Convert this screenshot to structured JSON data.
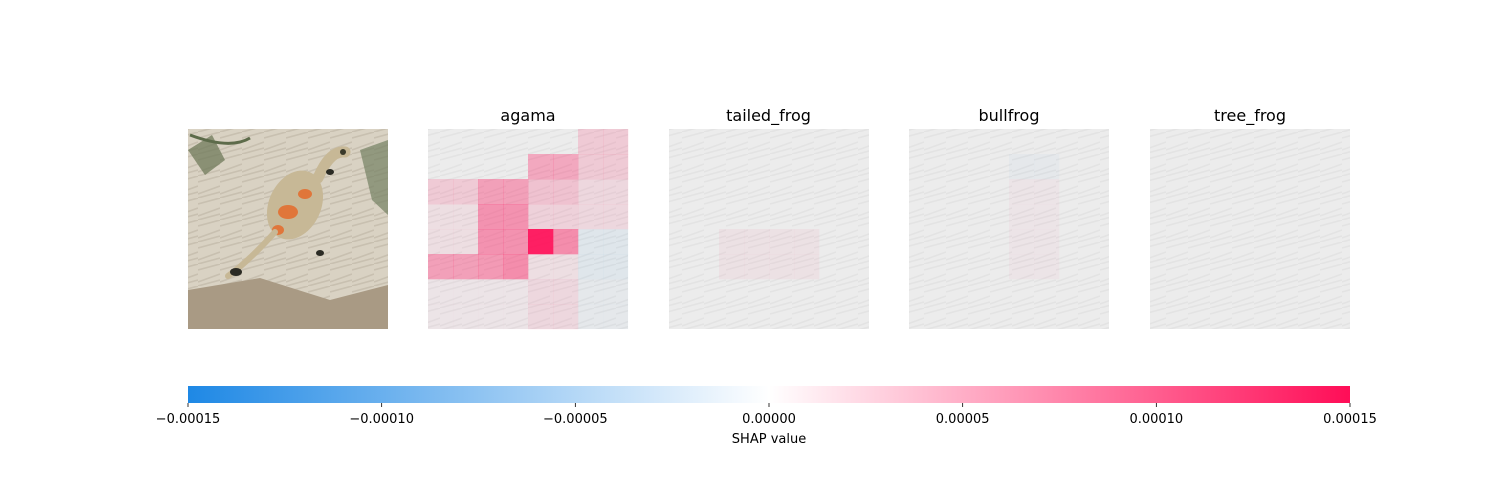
{
  "chart_data": {
    "type": "heatmap",
    "title": "",
    "xlabel": "SHAP value",
    "input_image": {
      "subject": "lizard-on-sand",
      "title": ""
    },
    "panels": [
      {
        "title": "agama",
        "grid_shape": [
          8,
          8
        ],
        "values": [
          [
            0.0,
            0.0,
            0.0,
            0.0,
            0.0,
            0.0,
            2.5e-05,
            2.5e-05
          ],
          [
            0.0,
            0.0,
            0.0,
            0.0,
            5e-05,
            5e-05,
            2.5e-05,
            2.5e-05
          ],
          [
            2.5e-05,
            2.5e-05,
            5.5e-05,
            5.5e-05,
            3e-05,
            3e-05,
            1.5e-05,
            1.5e-05
          ],
          [
            1e-05,
            1e-05,
            6.5e-05,
            6.5e-05,
            2e-05,
            2e-05,
            1.5e-05,
            1.5e-05
          ],
          [
            1e-05,
            1e-05,
            6.5e-05,
            6.5e-05,
            0.00015,
            7e-05,
            -1e-05,
            -1e-05
          ],
          [
            5.5e-05,
            5.5e-05,
            6e-05,
            7e-05,
            1e-05,
            1e-05,
            -1e-05,
            -1e-05
          ],
          [
            5e-06,
            5e-06,
            5e-06,
            5e-06,
            1.5e-05,
            1.5e-05,
            -5e-06,
            -5e-06
          ],
          [
            5e-06,
            5e-06,
            5e-06,
            5e-06,
            1.5e-05,
            1.5e-05,
            -5e-06,
            -5e-06
          ]
        ]
      },
      {
        "title": "tailed_frog",
        "grid_shape": [
          8,
          8
        ],
        "values": [
          [
            0,
            0,
            0,
            0,
            0,
            0,
            0,
            0
          ],
          [
            0,
            0,
            0,
            0,
            0,
            0,
            0,
            0
          ],
          [
            0,
            0,
            0,
            0,
            0,
            0,
            0,
            0
          ],
          [
            0,
            0,
            0,
            0,
            0,
            0,
            0,
            0
          ],
          [
            0,
            0,
            8e-06,
            8e-06,
            8e-06,
            8e-06,
            0,
            0
          ],
          [
            0,
            0,
            8e-06,
            8e-06,
            8e-06,
            8e-06,
            0,
            0
          ],
          [
            0,
            0,
            0,
            0,
            0,
            0,
            0,
            0
          ],
          [
            0,
            0,
            0,
            0,
            0,
            0,
            0,
            0
          ]
        ]
      },
      {
        "title": "bullfrog",
        "grid_shape": [
          8,
          8
        ],
        "values": [
          [
            0,
            0,
            0,
            0,
            0,
            0,
            0,
            0
          ],
          [
            0,
            0,
            0,
            0,
            -5e-06,
            -5e-06,
            0,
            0
          ],
          [
            0,
            0,
            0,
            0,
            5e-06,
            5e-06,
            0,
            0
          ],
          [
            0,
            0,
            0,
            0,
            5e-06,
            5e-06,
            0,
            0
          ],
          [
            0,
            0,
            0,
            0,
            5e-06,
            5e-06,
            0,
            0
          ],
          [
            0,
            0,
            0,
            0,
            5e-06,
            5e-06,
            0,
            0
          ],
          [
            0,
            0,
            0,
            0,
            0,
            0,
            0,
            0
          ],
          [
            0,
            0,
            0,
            0,
            0,
            0,
            0,
            0
          ]
        ]
      },
      {
        "title": "tree_frog",
        "grid_shape": [
          8,
          8
        ],
        "values": [
          [
            0,
            0,
            0,
            0,
            0,
            0,
            0,
            0
          ],
          [
            0,
            0,
            0,
            0,
            0,
            0,
            0,
            0
          ],
          [
            0,
            0,
            0,
            0,
            0,
            0,
            0,
            0
          ],
          [
            0,
            0,
            0,
            0,
            0,
            0,
            0,
            0
          ],
          [
            0,
            0,
            0,
            0,
            0,
            0,
            0,
            0
          ],
          [
            0,
            0,
            0,
            0,
            0,
            0,
            0,
            0
          ],
          [
            0,
            0,
            0,
            0,
            0,
            0,
            0,
            0
          ],
          [
            0,
            0,
            0,
            0,
            0,
            0,
            0,
            0
          ]
        ]
      }
    ],
    "colorbar": {
      "label": "SHAP value",
      "range": [
        -0.00015,
        0.00015
      ],
      "ticks": [
        -0.00015,
        -0.0001,
        -5e-05,
        0,
        5e-05,
        0.0001,
        0.00015
      ],
      "tick_labels": [
        "−0.00015",
        "−0.00010",
        "−0.00005",
        "0.00000",
        "0.00005",
        "0.00010",
        "0.00015"
      ],
      "colors": {
        "negative": "#1e88e5",
        "zero": "#ffffff",
        "positive": "#ff0d57"
      }
    },
    "grid": false,
    "legend": "colorbar-bottom"
  }
}
